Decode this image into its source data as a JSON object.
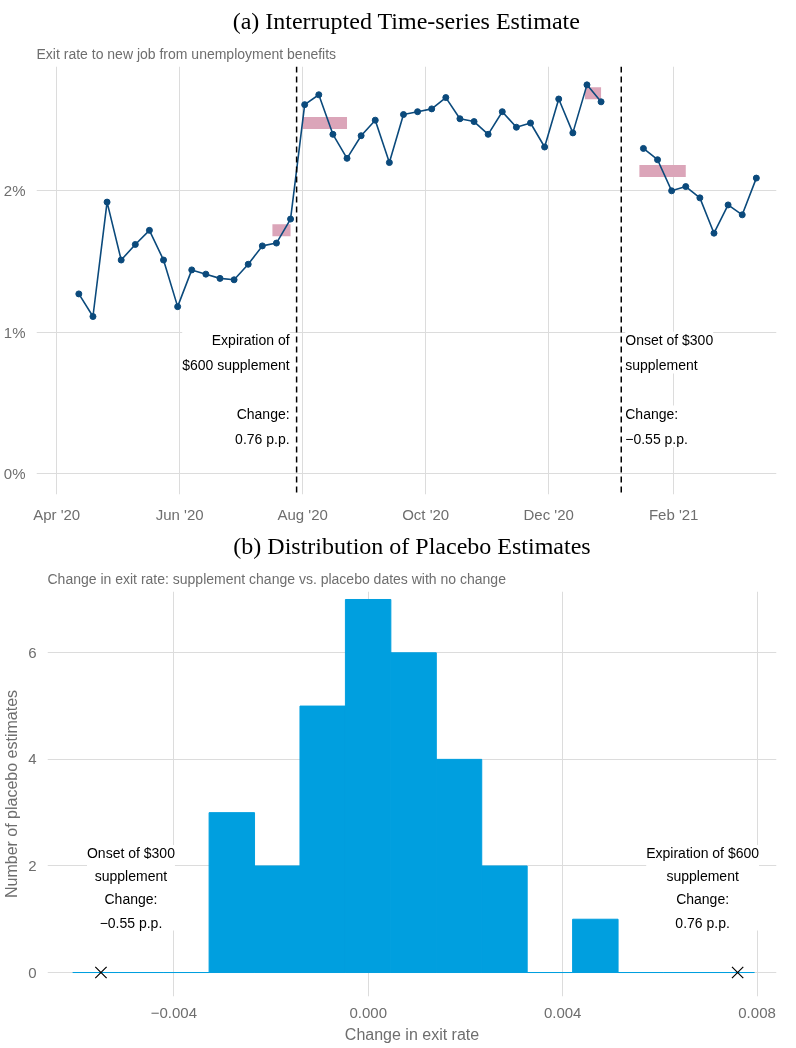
{
  "chart_data": [
    {
      "type": "line",
      "title": "(a) Interrupted Time-series Estimate",
      "subtitle": "Exit rate to new job from unemployment benefits",
      "xlim": [
        "2020-03-22",
        "2021-03-24"
      ],
      "ylim": [
        -0.15,
        2.88
      ],
      "xticks": [
        {
          "value": "2020-04-01",
          "label": "Apr '20"
        },
        {
          "value": "2020-06-01",
          "label": "Jun '20"
        },
        {
          "value": "2020-08-01",
          "label": "Aug '20"
        },
        {
          "value": "2020-10-01",
          "label": "Oct '20"
        },
        {
          "value": "2020-12-01",
          "label": "Dec '20"
        },
        {
          "value": "2021-02-01",
          "label": "Feb '21"
        }
      ],
      "yticks": [
        {
          "value": 0,
          "label": "0%"
        },
        {
          "value": 1,
          "label": "1%"
        },
        {
          "value": 2,
          "label": "2%"
        }
      ],
      "grid": true,
      "marker": "circle",
      "series": [
        {
          "color": "#dba5b9",
          "marker": "none",
          "x": [
            "2020-07-17",
            "2020-07-26"
          ],
          "values": [
            1.72,
            1.72
          ]
        },
        {
          "color": "#dba5b9",
          "marker": "none",
          "x": [
            "2020-08-01",
            "2020-08-23"
          ],
          "values": [
            2.48,
            2.48
          ]
        },
        {
          "color": "#dba5b9",
          "marker": "none",
          "x": [
            "2020-12-19",
            "2020-12-27"
          ],
          "values": [
            2.69,
            2.69
          ]
        },
        {
          "color": "#dba5b9",
          "marker": "none",
          "x": [
            "2021-01-15",
            "2021-02-07"
          ],
          "values": [
            2.14,
            2.14
          ]
        },
        {
          "color": "#0b4a7c",
          "x": [
            "2020-04-12",
            "2020-04-19",
            "2020-04-26",
            "2020-05-03",
            "2020-05-10",
            "2020-05-17",
            "2020-05-24",
            "2020-05-31",
            "2020-06-07",
            "2020-06-14",
            "2020-06-21",
            "2020-06-28",
            "2020-07-05",
            "2020-07-12",
            "2020-07-19",
            "2020-07-26",
            "2020-08-02",
            "2020-08-09",
            "2020-08-16",
            "2020-08-23",
            "2020-08-30",
            "2020-09-06",
            "2020-09-13",
            "2020-09-20",
            "2020-09-27",
            "2020-10-04",
            "2020-10-11",
            "2020-10-18",
            "2020-10-25",
            "2020-11-01",
            "2020-11-08",
            "2020-11-15",
            "2020-11-22",
            "2020-11-29",
            "2020-12-06",
            "2020-12-13",
            "2020-12-20",
            "2020-12-27",
            "2021-01-03",
            "2021-01-10",
            "2021-01-17",
            "2021-01-24",
            "2021-01-31",
            "2021-02-07",
            "2021-02-14",
            "2021-02-21",
            "2021-02-28",
            "2021-03-07",
            "2021-03-14"
          ],
          "values": [
            1.27,
            1.11,
            1.92,
            1.51,
            1.62,
            1.72,
            1.51,
            1.18,
            1.44,
            1.41,
            1.38,
            1.37,
            1.48,
            1.61,
            1.63,
            1.8,
            2.61,
            2.68,
            2.4,
            2.23,
            2.39,
            2.5,
            2.2,
            2.54,
            2.56,
            2.58,
            2.66,
            2.51,
            2.49,
            2.4,
            2.56,
            2.45,
            2.48,
            2.31,
            2.65,
            2.41,
            2.75,
            2.63,
            null,
            null,
            2.3,
            2.22,
            2.0,
            2.03,
            1.95,
            1.7,
            1.9,
            1.83,
            2.09
          ]
        }
      ],
      "ref_lines": [
        {
          "axis": "x",
          "value": "2020-07-29",
          "color": "#000000",
          "line_style": "dashed",
          "label": "Expiration of\n$600 supplement"
        },
        {
          "axis": "x",
          "value": "2021-01-06",
          "color": "#000000",
          "line_style": "dashed",
          "label": "Onset of $300\nsupplement"
        }
      ],
      "annotations": [
        {
          "text": "Change:\n0.76 p.p.",
          "x": "2020-07-29",
          "y": 0.48
        },
        {
          "text": "Change:\n−0.55 p.p.",
          "x": "2021-01-06",
          "y": 0.48
        }
      ]
    },
    {
      "type": "histogram",
      "title": "(b) Distribution of Placebo Estimates",
      "subtitle": "Change in exit rate: supplement change vs. placebo dates with no change",
      "xlabel": "Change in exit rate",
      "ylabel": "Number of placebo estimates",
      "xlim": [
        -0.0066,
        0.0084
      ],
      "ylim": [
        -0.45,
        7.15
      ],
      "xticks": [
        {
          "value": -0.004,
          "label": "−0.004"
        },
        {
          "value": 0,
          "label": "0.000"
        },
        {
          "value": 0.004,
          "label": "0.004"
        },
        {
          "value": 0.008,
          "label": "0.008"
        }
      ],
      "yticks": [
        0,
        2,
        4,
        6
      ],
      "grid": true,
      "color": "#009fdf",
      "bins": [
        -0.00608,
        -0.005145,
        -0.00421,
        -0.003275,
        -0.00234,
        -0.001405,
        -0.00047,
        0.000465,
        0.0014,
        0.002335,
        0.00327,
        0.004205,
        0.00514,
        0.006075,
        0.00701,
        0.007945
      ],
      "values": [
        0,
        0,
        0,
        3,
        2,
        5,
        7,
        6,
        4,
        2,
        0,
        1,
        0,
        0,
        0
      ],
      "series": [
        {
          "type": "scatter",
          "marker": "cross",
          "color": "#000000",
          "x": [
            -0.0055,
            0.0076
          ],
          "values": [
            0,
            0
          ]
        }
      ],
      "annotations": [
        {
          "text": "Onset of $300\nsupplement\nChange:\n−0.55 p.p.",
          "x": -0.0055,
          "y": 0
        },
        {
          "text": "Expiration of $600\nsupplement\nChange:\n0.76 p.p.",
          "x": 0.0076,
          "y": 0
        }
      ]
    }
  ]
}
